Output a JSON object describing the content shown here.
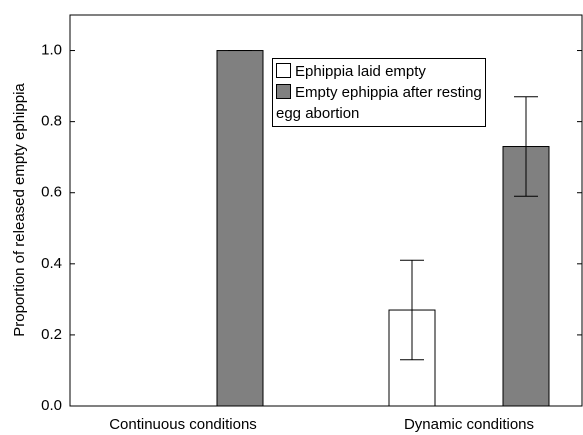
{
  "chart_data": {
    "type": "bar",
    "y_label": "Proportion of released empty ephippia",
    "categories": [
      "Continuous conditions",
      "Dynamic conditions"
    ],
    "series": [
      {
        "name": "Ephippia laid empty",
        "color": "#ffffff",
        "values": [
          null,
          0.27
        ],
        "errors": [
          null,
          0.14
        ]
      },
      {
        "name": "Empty ephippia after resting egg abortion",
        "color": "#808080",
        "values": [
          1.0,
          0.73
        ],
        "errors": [
          0,
          0.14
        ]
      }
    ],
    "ylim": [
      0,
      1.1
    ],
    "yticks": [
      {
        "value": 0,
        "label": "0.0"
      },
      0.2,
      0.4,
      0.6,
      0.8,
      {
        "value": 1,
        "label": "1.0"
      }
    ]
  }
}
